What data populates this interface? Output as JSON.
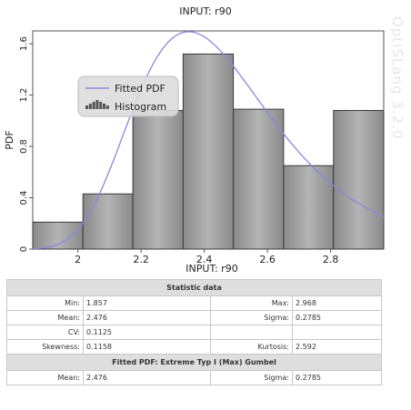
{
  "chart_data": {
    "type": "bar",
    "title": "INPUT: r90",
    "xlabel": "INPUT: r90",
    "ylabel": "PDF",
    "xlim": [
      1.857,
      2.968
    ],
    "ylim": [
      0,
      1.7
    ],
    "x_ticks": [
      2,
      2.2,
      2.4,
      2.6,
      2.8
    ],
    "x_tick_labels": [
      "2",
      "2.2",
      "2.4",
      "2.6",
      "2.8"
    ],
    "y_ticks": [
      0,
      0.4,
      0.8,
      1.2,
      1.6
    ],
    "y_tick_labels": [
      "0",
      "0.4",
      "0.8",
      "1.2",
      "1.6"
    ],
    "bins": [
      {
        "x0": 1.857,
        "x1": 2.016,
        "value": 0.21
      },
      {
        "x0": 2.016,
        "x1": 2.174,
        "value": 0.43
      },
      {
        "x0": 2.174,
        "x1": 2.333,
        "value": 1.08
      },
      {
        "x0": 2.333,
        "x1": 2.492,
        "value": 1.52
      },
      {
        "x0": 2.492,
        "x1": 2.651,
        "value": 1.09
      },
      {
        "x0": 2.651,
        "x1": 2.809,
        "value": 0.65
      },
      {
        "x0": 2.809,
        "x1": 2.968,
        "value": 1.08
      }
    ],
    "fitted_pdf": {
      "name": "Fitted PDF",
      "distribution": "Gumbel",
      "mean": 2.476,
      "sigma": 0.2785
    },
    "legend": {
      "position": "top-left",
      "entries": [
        {
          "label": "Fitted PDF",
          "kind": "line",
          "color": "#8888e0"
        },
        {
          "label": "Histogram",
          "kind": "bar-icon",
          "color": "#888888"
        }
      ]
    },
    "grid": false
  },
  "watermark": "OptiSLang 3.2.0",
  "stats": {
    "section1_title": "Statistic data",
    "rows": [
      {
        "l1": "Min:",
        "v1": "1.857",
        "l2": "Max:",
        "v2": "2.968"
      },
      {
        "l1": "Mean:",
        "v1": "2.476",
        "l2": "Sigma:",
        "v2": "0.2785"
      },
      {
        "l1": "CV:",
        "v1": "0.1125",
        "l2": "",
        "v2": ""
      },
      {
        "l1": "Skewness:",
        "v1": "0.1158",
        "l2": "Kurtosis:",
        "v2": "2.592"
      }
    ],
    "section2_title": "Fitted PDF: Extreme Typ I (Max) Gumbel",
    "fit_rows": [
      {
        "l1": "Mean:",
        "v1": "2.476",
        "l2": "Sigma:",
        "v2": "0.2785"
      }
    ]
  }
}
